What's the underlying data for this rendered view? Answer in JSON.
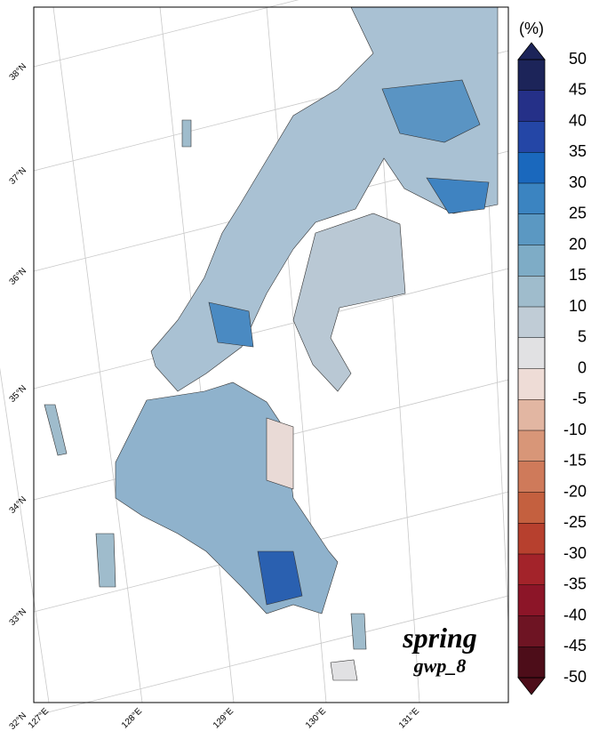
{
  "map_title": {
    "season": "spring",
    "model": "gwp_8"
  },
  "colorbar": {
    "unit": "(%)",
    "ticks": [
      -50,
      -45,
      -40,
      -35,
      -30,
      -25,
      -20,
      -15,
      -10,
      -5,
      0,
      5,
      10,
      15,
      20,
      25,
      30,
      35,
      40,
      45,
      50
    ],
    "colors": [
      "#4d0d19",
      "#6e1423",
      "#8c1528",
      "#a3232a",
      "#b7402e",
      "#c4603f",
      "#cf7a5a",
      "#d89678",
      "#e2b6a2",
      "#eedcd6",
      "#e1e1e3",
      "#c0ccd6",
      "#9fbccc",
      "#7eacc6",
      "#5b98c2",
      "#3b84c1",
      "#1a68bd",
      "#2446a6",
      "#253088",
      "#1c2459"
    ]
  },
  "lat_labels": [
    "38°N",
    "37°N",
    "36°N",
    "35°N",
    "34°N",
    "33°N",
    "32°N"
  ],
  "lon_labels": [
    "127°E",
    "128°E",
    "129°E",
    "130°E",
    "131°E"
  ]
}
